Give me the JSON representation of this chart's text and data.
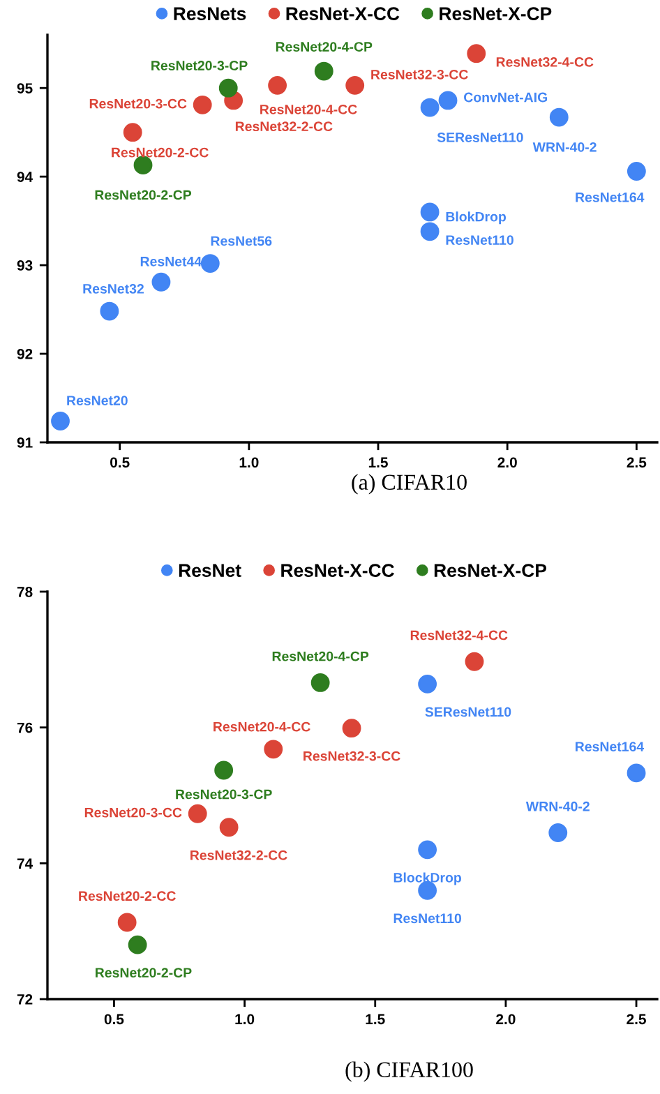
{
  "chart_data": [
    {
      "type": "scatter",
      "xlim": [
        0.22,
        2.58
      ],
      "ylim": [
        91,
        95.6
      ],
      "xticks": [
        {
          "value": 0.5,
          "label": "0.5"
        },
        {
          "value": 1.0,
          "label": "1.0"
        },
        {
          "value": 1.5,
          "label": "1.5"
        },
        {
          "value": 2.0,
          "label": "2.0"
        },
        {
          "value": 2.5,
          "label": "2.5"
        }
      ],
      "yticks": [
        91,
        92,
        93,
        94,
        95
      ],
      "grid": false,
      "legend": "top",
      "marker": "circle",
      "series": [
        {
          "name": "ResNets",
          "color": "#4285f4",
          "x": [
            1.7,
            1.77,
            2.2,
            2.5,
            1.7,
            1.7,
            0.85,
            0.66,
            0.46,
            0.27
          ],
          "values": [
            94.78,
            94.86,
            94.67,
            94.06,
            93.6,
            93.38,
            93.02,
            92.81,
            92.48,
            91.24
          ]
        },
        {
          "name": "ResNet-X-CC",
          "color": "#db4437",
          "x": [
            1.88,
            1.11,
            1.41,
            0.82,
            0.94,
            0.55
          ],
          "values": [
            95.39,
            95.03,
            95.03,
            94.81,
            94.86,
            94.5
          ]
        },
        {
          "name": "ResNet-X-CP",
          "color": "#2e7d1f",
          "x": [
            1.29,
            0.92,
            0.59
          ],
          "values": [
            95.19,
            95.0,
            94.13
          ]
        }
      ],
      "annotations": [
        {
          "text": "ResNet32-4-CC",
          "x": 1.88,
          "y": 95.39
        },
        {
          "text": "ResNet20-4-CP",
          "x": 1.29,
          "y": 95.19
        },
        {
          "text": "ResNet20-3-CP",
          "x": 0.92,
          "y": 95.0
        },
        {
          "text": "ResNet20-4-CC",
          "x": 1.11,
          "y": 95.03
        },
        {
          "text": "ResNet32-3-CC",
          "x": 1.41,
          "y": 95.03
        },
        {
          "text": "ResNet20-3-CC",
          "x": 0.82,
          "y": 94.81
        },
        {
          "text": "ResNet32-2-CC",
          "x": 0.94,
          "y": 94.86
        },
        {
          "text": "SEResNet110",
          "x": 1.7,
          "y": 94.78
        },
        {
          "text": "ConvNet-AIG",
          "x": 1.77,
          "y": 94.86
        },
        {
          "text": "WRN-40-2",
          "x": 2.2,
          "y": 94.67
        },
        {
          "text": "ResNet20-2-CC",
          "x": 0.55,
          "y": 94.5
        },
        {
          "text": "ResNet20-2-CP",
          "x": 0.59,
          "y": 94.13
        },
        {
          "text": "ResNet164",
          "x": 2.5,
          "y": 94.06
        },
        {
          "text": "BlokDrop",
          "x": 1.7,
          "y": 93.6
        },
        {
          "text": "ResNet110",
          "x": 1.7,
          "y": 93.38
        },
        {
          "text": "ResNet56",
          "x": 0.85,
          "y": 93.02
        },
        {
          "text": "ResNet44",
          "x": 0.66,
          "y": 92.81
        },
        {
          "text": "ResNet32",
          "x": 0.46,
          "y": 92.48
        },
        {
          "text": "ResNet20",
          "x": 0.27,
          "y": 91.24
        },
        "(a) CIFAR10"
      ]
    },
    {
      "type": "scatter",
      "xlim": [
        0.245,
        2.58
      ],
      "ylim": [
        72,
        78
      ],
      "xticks": [
        {
          "value": 0.5,
          "label": "0.5"
        },
        {
          "value": 1.0,
          "label": "1.0"
        },
        {
          "value": 1.5,
          "label": "1.5"
        },
        {
          "value": 2.0,
          "label": "2.0"
        },
        {
          "value": 2.5,
          "label": "2.5"
        }
      ],
      "yticks": [
        72,
        74,
        76,
        78
      ],
      "grid": false,
      "legend": "top",
      "marker": "circle",
      "series": [
        {
          "name": "ResNet",
          "color": "#4285f4",
          "x": [
            1.7,
            2.5,
            2.2,
            1.7,
            1.7
          ],
          "values": [
            76.64,
            75.33,
            74.45,
            74.2,
            73.6
          ]
        },
        {
          "name": "ResNet-X-CC",
          "color": "#db4437",
          "x": [
            1.88,
            1.41,
            1.11,
            0.82,
            0.94,
            0.55
          ],
          "values": [
            76.97,
            75.99,
            75.68,
            74.73,
            74.53,
            73.13
          ]
        },
        {
          "name": "ResNet-X-CP",
          "color": "#2e7d1f",
          "x": [
            1.29,
            0.92,
            0.59
          ],
          "values": [
            76.66,
            75.37,
            72.8
          ]
        }
      ],
      "annotations": [
        {
          "text": "ResNet32-4-CC",
          "x": 1.88,
          "y": 76.97
        },
        {
          "text": "ResNet20-4-CP",
          "x": 1.29,
          "y": 76.66
        },
        {
          "text": "SEResNet110",
          "x": 1.7,
          "y": 76.64
        },
        {
          "text": "ResNet32-3-CC",
          "x": 1.41,
          "y": 75.99
        },
        {
          "text": "ResNet20-4-CC",
          "x": 1.11,
          "y": 75.68
        },
        {
          "text": "ResNet20-3-CP",
          "x": 0.92,
          "y": 75.37
        },
        {
          "text": "ResNet164",
          "x": 2.5,
          "y": 75.33
        },
        {
          "text": "ResNet20-3-CC",
          "x": 0.82,
          "y": 74.73
        },
        {
          "text": "ResNet32-2-CC",
          "x": 0.94,
          "y": 74.53
        },
        {
          "text": "WRN-40-2",
          "x": 2.2,
          "y": 74.45
        },
        {
          "text": "BlockDrop",
          "x": 1.7,
          "y": 74.2
        },
        {
          "text": "ResNet110",
          "x": 1.7,
          "y": 73.6
        },
        {
          "text": "ResNet20-2-CC",
          "x": 0.55,
          "y": 73.13
        },
        {
          "text": "ResNet20-2-CP",
          "x": 0.59,
          "y": 72.8
        },
        "(b) CIFAR100"
      ]
    }
  ]
}
